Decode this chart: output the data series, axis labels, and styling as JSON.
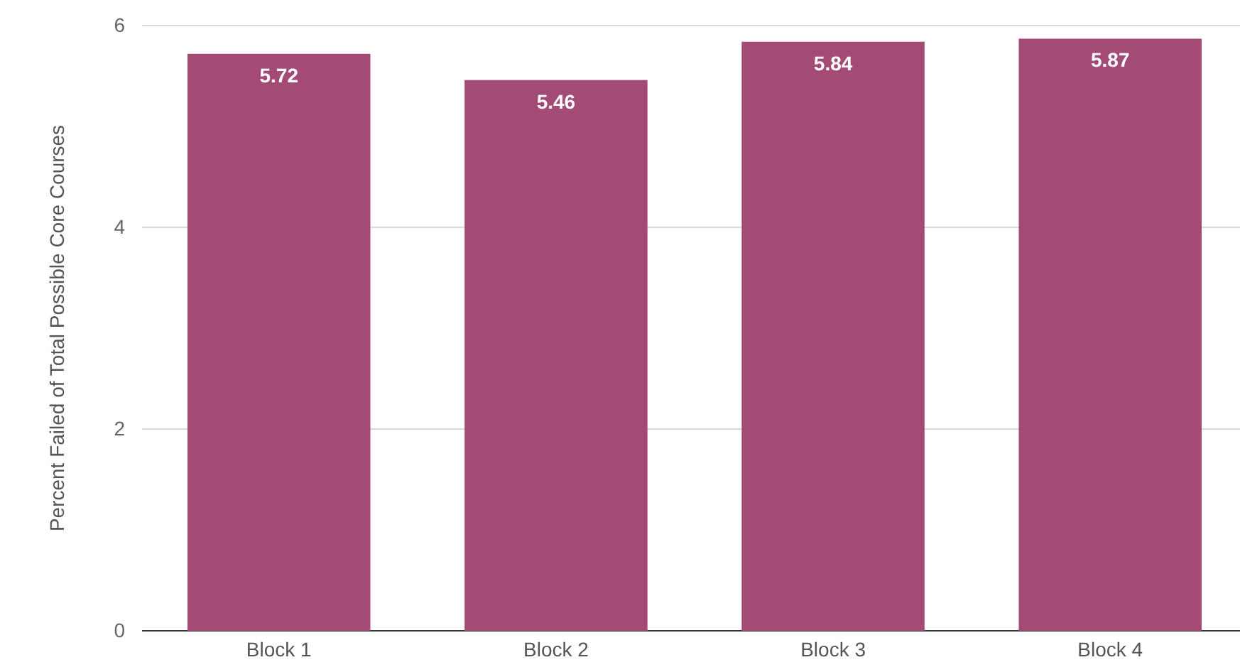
{
  "chart_data": {
    "type": "bar",
    "ylabel": "Percent Failed of Total Possible Core Courses",
    "categories": [
      "Block 1",
      "Block 2",
      "Block 3",
      "Block 4"
    ],
    "values": [
      5.72,
      5.46,
      5.84,
      5.87
    ],
    "color": "#a44b75",
    "ylim": [
      0,
      6
    ],
    "yticks": [
      0,
      2,
      4,
      6
    ],
    "grid": "y",
    "data_labels": true
  }
}
